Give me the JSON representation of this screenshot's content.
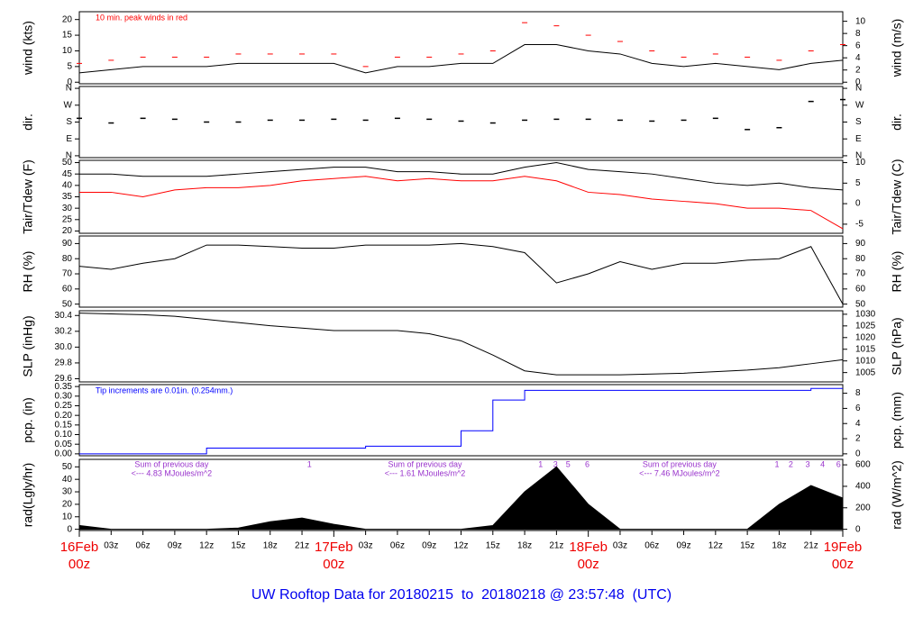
{
  "title": "UW Rooftop Data for 20180215  to  20180218 @ 23:57:48  (UTC)",
  "time_axis": {
    "xlim": [
      0,
      72
    ],
    "xticks": [
      {
        "value": 3,
        "label": "03z"
      },
      {
        "value": 6,
        "label": "06z"
      },
      {
        "value": 9,
        "label": "09z"
      },
      {
        "value": 12,
        "label": "12z"
      },
      {
        "value": 15,
        "label": "15z"
      },
      {
        "value": 18,
        "label": "18z"
      },
      {
        "value": 21,
        "label": "21z"
      },
      {
        "value": 27,
        "label": "03z"
      },
      {
        "value": 30,
        "label": "06z"
      },
      {
        "value": 33,
        "label": "09z"
      },
      {
        "value": 36,
        "label": "12z"
      },
      {
        "value": 39,
        "label": "15z"
      },
      {
        "value": 42,
        "label": "18z"
      },
      {
        "value": 45,
        "label": "21z"
      },
      {
        "value": 51,
        "label": "03z"
      },
      {
        "value": 54,
        "label": "06z"
      },
      {
        "value": 57,
        "label": "09z"
      },
      {
        "value": 60,
        "label": "12z"
      },
      {
        "value": 63,
        "label": "15z"
      },
      {
        "value": 66,
        "label": "18z"
      },
      {
        "value": 69,
        "label": "21z"
      }
    ],
    "day_ticks": [
      {
        "value": 0,
        "label": "16Feb",
        "hour": "00z"
      },
      {
        "value": 24,
        "label": "17Feb",
        "hour": "00z"
      },
      {
        "value": 48,
        "label": "18Feb",
        "hour": "00z"
      },
      {
        "value": 72,
        "label": "19Feb",
        "hour": "00z"
      }
    ]
  },
  "chart_data": [
    {
      "type": "line",
      "ylabel": "wind (kts)",
      "y2label": "wind (m/s)",
      "ylim": [
        -0.5,
        22.5
      ],
      "yticks": [
        0,
        5,
        10,
        15,
        20
      ],
      "y2lim": [
        -0.26,
        11.57
      ],
      "y2ticks": [
        0,
        2,
        4,
        6,
        8,
        10
      ],
      "annotation": "10 min. peak winds in red",
      "x": [
        0,
        3,
        6,
        9,
        12,
        15,
        18,
        21,
        24,
        27,
        30,
        33,
        36,
        39,
        42,
        45,
        48,
        51,
        54,
        57,
        60,
        63,
        66,
        69,
        72
      ],
      "series": [
        {
          "style": "line",
          "color": "#000000",
          "values": [
            3,
            4,
            5,
            5,
            5,
            6,
            6,
            6,
            6,
            3,
            5,
            5,
            6,
            6,
            12,
            12,
            10,
            9,
            6,
            5,
            6,
            5,
            4,
            6,
            7
          ]
        },
        {
          "style": "dash",
          "color": "#ff0000",
          "values": [
            6,
            7,
            8,
            8,
            8,
            9,
            9,
            9,
            9,
            5,
            8,
            8,
            9,
            10,
            19,
            18,
            15,
            13,
            10,
            8,
            9,
            8,
            7,
            10,
            12
          ]
        }
      ]
    },
    {
      "type": "scatter",
      "ylabel": "dir.",
      "y2label": "dir.",
      "ylim": [
        -10,
        370
      ],
      "yticks": [
        {
          "value": 360,
          "label": "N"
        },
        {
          "value": 270,
          "label": "W"
        },
        {
          "value": 180,
          "label": "S"
        },
        {
          "value": 90,
          "label": "E"
        },
        {
          "value": 0,
          "label": "N"
        }
      ],
      "y2lim": [
        -10,
        370
      ],
      "y2ticks": [
        {
          "value": 360,
          "label": "N"
        },
        {
          "value": 270,
          "label": "W"
        },
        {
          "value": 180,
          "label": "S"
        },
        {
          "value": 90,
          "label": "E"
        },
        {
          "value": 0,
          "label": "N"
        }
      ],
      "x": [
        0,
        3,
        6,
        9,
        12,
        15,
        18,
        21,
        24,
        27,
        30,
        33,
        36,
        39,
        42,
        45,
        48,
        51,
        54,
        57,
        60,
        63,
        66,
        69,
        72
      ],
      "series": [
        {
          "style": "points",
          "color": "#000000",
          "values": [
            200,
            175,
            200,
            195,
            180,
            180,
            190,
            190,
            195,
            190,
            200,
            195,
            185,
            175,
            190,
            195,
            195,
            190,
            185,
            190,
            200,
            140,
            150,
            290,
            300
          ]
        }
      ]
    },
    {
      "type": "line",
      "ylabel": "Tair/Tdew (F)",
      "y2label": "Tair/Tdew (C)",
      "ylim": [
        19,
        51
      ],
      "yticks": [
        20,
        25,
        30,
        35,
        40,
        45,
        50
      ],
      "y2lim": [
        -7.22,
        10.56
      ],
      "y2ticks": [
        -5,
        0,
        5,
        10
      ],
      "x": [
        0,
        3,
        6,
        9,
        12,
        15,
        18,
        21,
        24,
        27,
        30,
        33,
        36,
        39,
        42,
        45,
        48,
        51,
        54,
        57,
        60,
        63,
        66,
        69,
        72
      ],
      "series": [
        {
          "style": "line",
          "color": "#000000",
          "values": [
            45,
            45,
            44,
            44,
            44,
            45,
            46,
            47,
            48,
            48,
            46,
            46,
            45,
            45,
            48,
            50,
            47,
            46,
            45,
            43,
            41,
            40,
            41,
            39,
            38
          ]
        },
        {
          "style": "line",
          "color": "#ff0000",
          "values": [
            37,
            37,
            35,
            38,
            39,
            39,
            40,
            42,
            43,
            44,
            42,
            43,
            42,
            42,
            44,
            42,
            37,
            36,
            34,
            33,
            32,
            30,
            30,
            29,
            21
          ]
        }
      ]
    },
    {
      "type": "line",
      "ylabel": "RH (%)",
      "y2label": "RH (%)",
      "ylim": [
        48,
        95
      ],
      "yticks": [
        50,
        60,
        70,
        80,
        90
      ],
      "y2lim": [
        48,
        95
      ],
      "y2ticks": [
        50,
        60,
        70,
        80,
        90
      ],
      "x": [
        0,
        3,
        6,
        9,
        12,
        15,
        18,
        21,
        24,
        27,
        30,
        33,
        36,
        39,
        42,
        45,
        48,
        51,
        54,
        57,
        60,
        63,
        66,
        69,
        72
      ],
      "series": [
        {
          "style": "line",
          "color": "#000000",
          "values": [
            75,
            73,
            77,
            80,
            89,
            89,
            88,
            87,
            87,
            89,
            89,
            89,
            90,
            88,
            84,
            64,
            70,
            78,
            73,
            77,
            77,
            79,
            80,
            88,
            50
          ]
        }
      ]
    },
    {
      "type": "line",
      "ylabel": "SLP (inHg)",
      "y2label": "SLP (hPa)",
      "ylim": [
        29.56,
        30.46
      ],
      "yticks": [
        {
          "value": 29.6,
          "label": "29.6"
        },
        {
          "value": 29.8,
          "label": "29.8"
        },
        {
          "value": 30,
          "label": "30.0"
        },
        30.2,
        30.4
      ],
      "y2lim": [
        1001.0,
        1031.5
      ],
      "y2ticks": [
        1005,
        1010,
        1015,
        1020,
        1025,
        1030
      ],
      "x": [
        0,
        3,
        6,
        9,
        12,
        15,
        18,
        21,
        24,
        27,
        30,
        33,
        36,
        39,
        42,
        45,
        48,
        51,
        54,
        57,
        60,
        63,
        66,
        69,
        72
      ],
      "series": [
        {
          "style": "line",
          "color": "#000000",
          "values": [
            30.43,
            30.42,
            30.41,
            30.39,
            30.35,
            30.31,
            30.27,
            30.24,
            30.21,
            30.21,
            30.21,
            30.17,
            30.08,
            29.9,
            29.7,
            29.65,
            29.65,
            29.65,
            29.66,
            29.67,
            29.69,
            29.71,
            29.74,
            29.79,
            29.84
          ]
        }
      ]
    },
    {
      "type": "line",
      "ylabel": "pcp. (in)",
      "y2label": "pcp. (mm)",
      "ylim": [
        -0.01,
        0.36
      ],
      "yticks": [
        {
          "value": 0,
          "label": "0.00"
        },
        0.05,
        {
          "value": 0.1,
          "label": "0.10"
        },
        0.15,
        {
          "value": 0.2,
          "label": "0.20"
        },
        0.25,
        {
          "value": 0.3,
          "label": "0.30"
        },
        0.35
      ],
      "y2lim": [
        -0.254,
        9.14
      ],
      "y2ticks": [
        0,
        2,
        4,
        6,
        8
      ],
      "annotation": "Tip increments are 0.01in. (0.254mm.)",
      "x": [
        0,
        3,
        6,
        9,
        12,
        15,
        18,
        21,
        24,
        27,
        30,
        33,
        36,
        39,
        42,
        45,
        48,
        51,
        54,
        57,
        60,
        63,
        66,
        69,
        72
      ],
      "series": [
        {
          "style": "step",
          "color": "#0000ff",
          "values": [
            0,
            0,
            0,
            0,
            0.03,
            0.03,
            0.03,
            0.03,
            0.03,
            0.04,
            0.04,
            0.04,
            0.12,
            0.28,
            0.33,
            0.33,
            0.33,
            0.33,
            0.33,
            0.33,
            0.33,
            0.33,
            0.33,
            0.34,
            0.34
          ]
        }
      ]
    },
    {
      "type": "area",
      "ylabel": "rad(Lgly/hr)",
      "y2label": "rad (W/m^2)",
      "ylim": [
        -1,
        56
      ],
      "yticks": [
        0,
        10,
        20,
        30,
        40,
        50
      ],
      "y2lim": [
        -11.6,
        651
      ],
      "y2ticks": [
        0,
        200,
        400,
        600
      ],
      "notes": [
        {
          "x": 8.7,
          "line1": "Sum of previous day",
          "line2": "<--- 4.83 MJoules/m^2"
        },
        {
          "x": 32.6,
          "line1": "Sum of previous day",
          "line2": "<--- 1.61 MJoules/m^2"
        },
        {
          "x": 56.6,
          "line1": "Sum of previous day",
          "line2": "<--- 7.46 MJoules/m^2"
        }
      ],
      "markers": [
        {
          "x": 21.7,
          "label": "1"
        },
        {
          "x": 43.5,
          "label": "1"
        },
        {
          "x": 44.9,
          "label": "3"
        },
        {
          "x": 46.1,
          "label": "5"
        },
        {
          "x": 47.9,
          "label": "6"
        },
        {
          "x": 65.8,
          "label": "1"
        },
        {
          "x": 67.1,
          "label": "2"
        },
        {
          "x": 68.7,
          "label": "3"
        },
        {
          "x": 70.1,
          "label": "4"
        },
        {
          "x": 71.6,
          "label": "6"
        }
      ],
      "x": [
        0,
        3,
        6,
        9,
        12,
        15,
        18,
        21,
        24,
        27,
        30,
        33,
        36,
        39,
        42,
        45,
        48,
        51,
        54,
        57,
        60,
        63,
        66,
        69,
        72
      ],
      "series": [
        {
          "style": "area",
          "color": "#000000",
          "values": [
            3,
            0,
            0,
            0,
            0,
            1,
            6,
            9,
            4,
            0,
            0,
            0,
            0,
            3,
            30,
            50,
            20,
            0,
            0,
            0,
            0,
            0,
            20,
            35,
            25
          ]
        }
      ]
    }
  ]
}
